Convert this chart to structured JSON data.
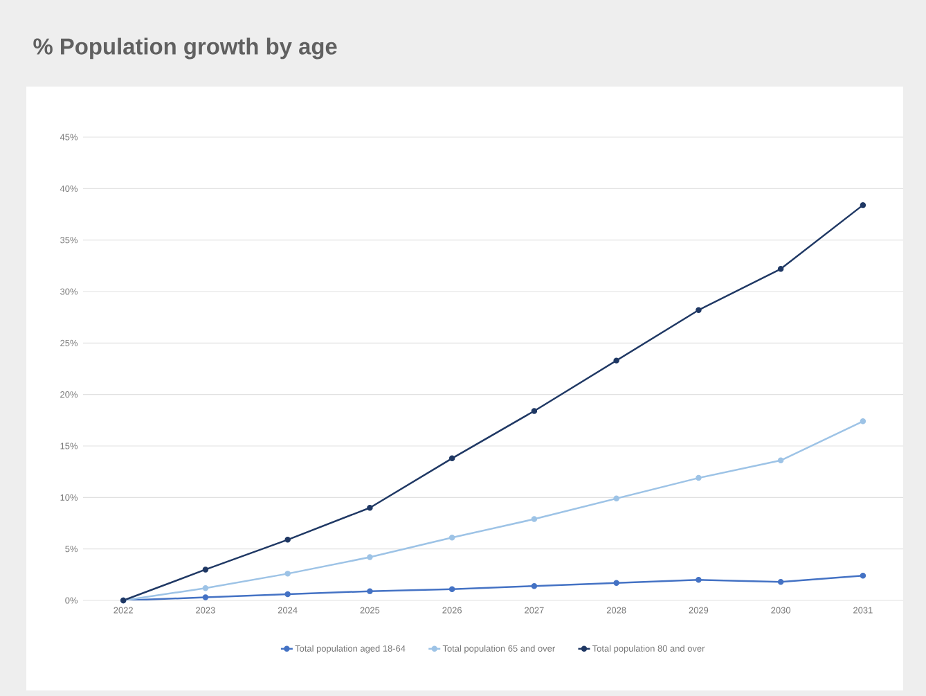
{
  "chart_data": {
    "type": "line",
    "title": "% Population growth by age",
    "categories": [
      "2022",
      "2023",
      "2024",
      "2025",
      "2026",
      "2027",
      "2028",
      "2029",
      "2030",
      "2031"
    ],
    "series": [
      {
        "name": "Total population aged 18-64",
        "color": "#4472c4",
        "values": [
          0,
          0.3,
          0.6,
          0.9,
          1.1,
          1.4,
          1.7,
          2.0,
          1.8,
          2.4
        ]
      },
      {
        "name": "Total population 65 and over",
        "color": "#9dc3e6",
        "values": [
          0,
          1.2,
          2.6,
          4.2,
          6.1,
          7.9,
          9.9,
          11.9,
          13.6,
          17.4
        ]
      },
      {
        "name": "Total population 80 and over",
        "color": "#1f3864",
        "values": [
          0,
          3.0,
          5.9,
          9.0,
          13.8,
          18.4,
          23.3,
          28.2,
          32.2,
          38.4
        ]
      }
    ],
    "ylim": [
      0,
      45
    ],
    "yticks": [
      {
        "value": 0,
        "label": "0%"
      },
      {
        "value": 5,
        "label": "5%"
      },
      {
        "value": 10,
        "label": "10%"
      },
      {
        "value": 15,
        "label": "15%"
      },
      {
        "value": 20,
        "label": "20%"
      },
      {
        "value": 25,
        "label": "25%"
      },
      {
        "value": 30,
        "label": "30%"
      },
      {
        "value": 35,
        "label": "35%"
      },
      {
        "value": 40,
        "label": "40%"
      },
      {
        "value": 45,
        "label": "45%"
      }
    ],
    "grid": "y",
    "legend": "bottom",
    "marker": "circle",
    "line_style": "solid"
  }
}
